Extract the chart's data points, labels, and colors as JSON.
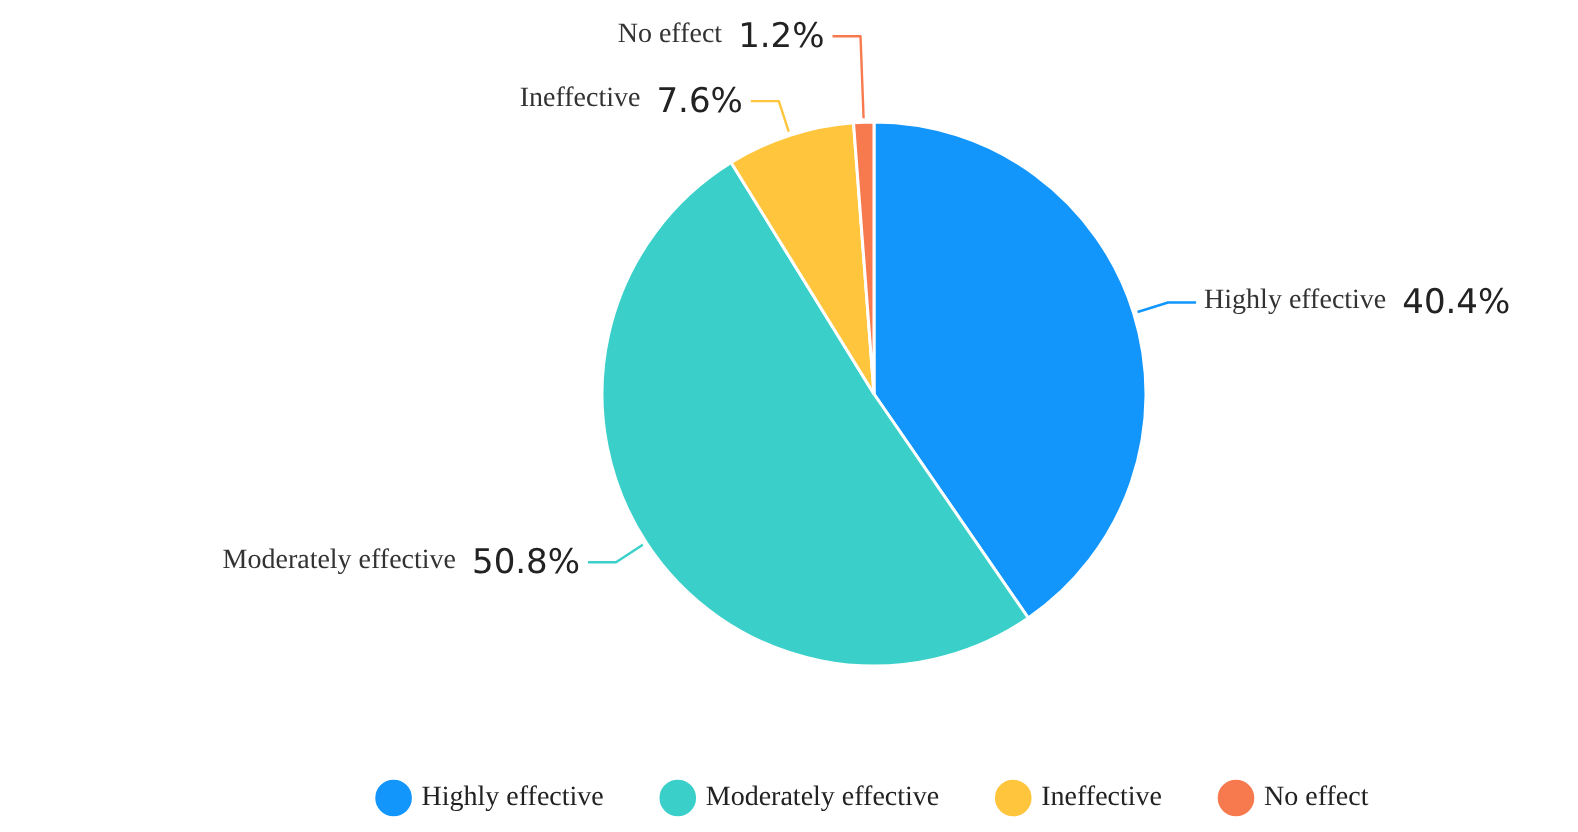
{
  "chart_data": {
    "type": "pie",
    "categories": [
      "Highly effective",
      "Moderately effective",
      "Ineffective",
      "No effect"
    ],
    "values": [
      40.4,
      50.8,
      7.6,
      1.2
    ],
    "colors": [
      "#1296fc",
      "#3ad0c9",
      "#ffc53d",
      "#f77a4f"
    ],
    "value_labels": [
      "40.4%",
      "50.8%",
      "7.6%",
      "1.2%"
    ],
    "legend": "bottom"
  }
}
